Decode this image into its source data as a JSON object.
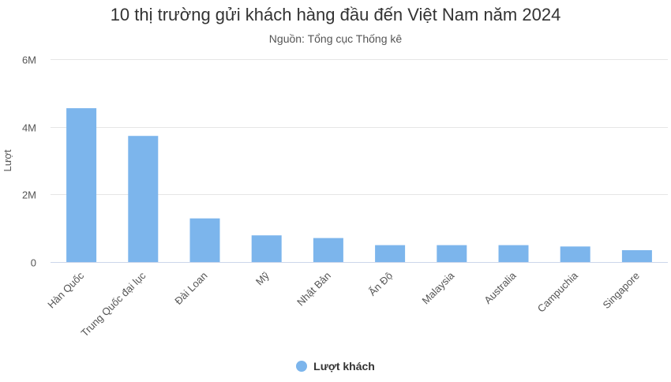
{
  "chart_data": {
    "type": "bar",
    "title": "10 thị trường gửi khách hàng đầu đến Việt Nam năm 2024",
    "subtitle": "Nguồn: Tổng cục Thống kê",
    "ylabel": "Lượt",
    "xlabel": "",
    "ylim": [
      0,
      6000000
    ],
    "yticks": [
      {
        "value": 0,
        "label": "0"
      },
      {
        "value": 2000000,
        "label": "2M"
      },
      {
        "value": 4000000,
        "label": "4M"
      },
      {
        "value": 6000000,
        "label": "6M"
      }
    ],
    "grid": true,
    "legend_position": "bottom",
    "categories": [
      "Hàn Quốc",
      "Trung Quốc đại lục",
      "Đài Loan",
      "Mỹ",
      "Nhật Bản",
      "Ấn Độ",
      "Malaysia",
      "Australia",
      "Campuchia",
      "Singapore"
    ],
    "series": [
      {
        "name": "Lượt khách",
        "color": "#7cb5ec",
        "values": [
          4550000,
          3730000,
          1290000,
          790000,
          710000,
          500000,
          500000,
          500000,
          460000,
          350000
        ]
      }
    ]
  }
}
